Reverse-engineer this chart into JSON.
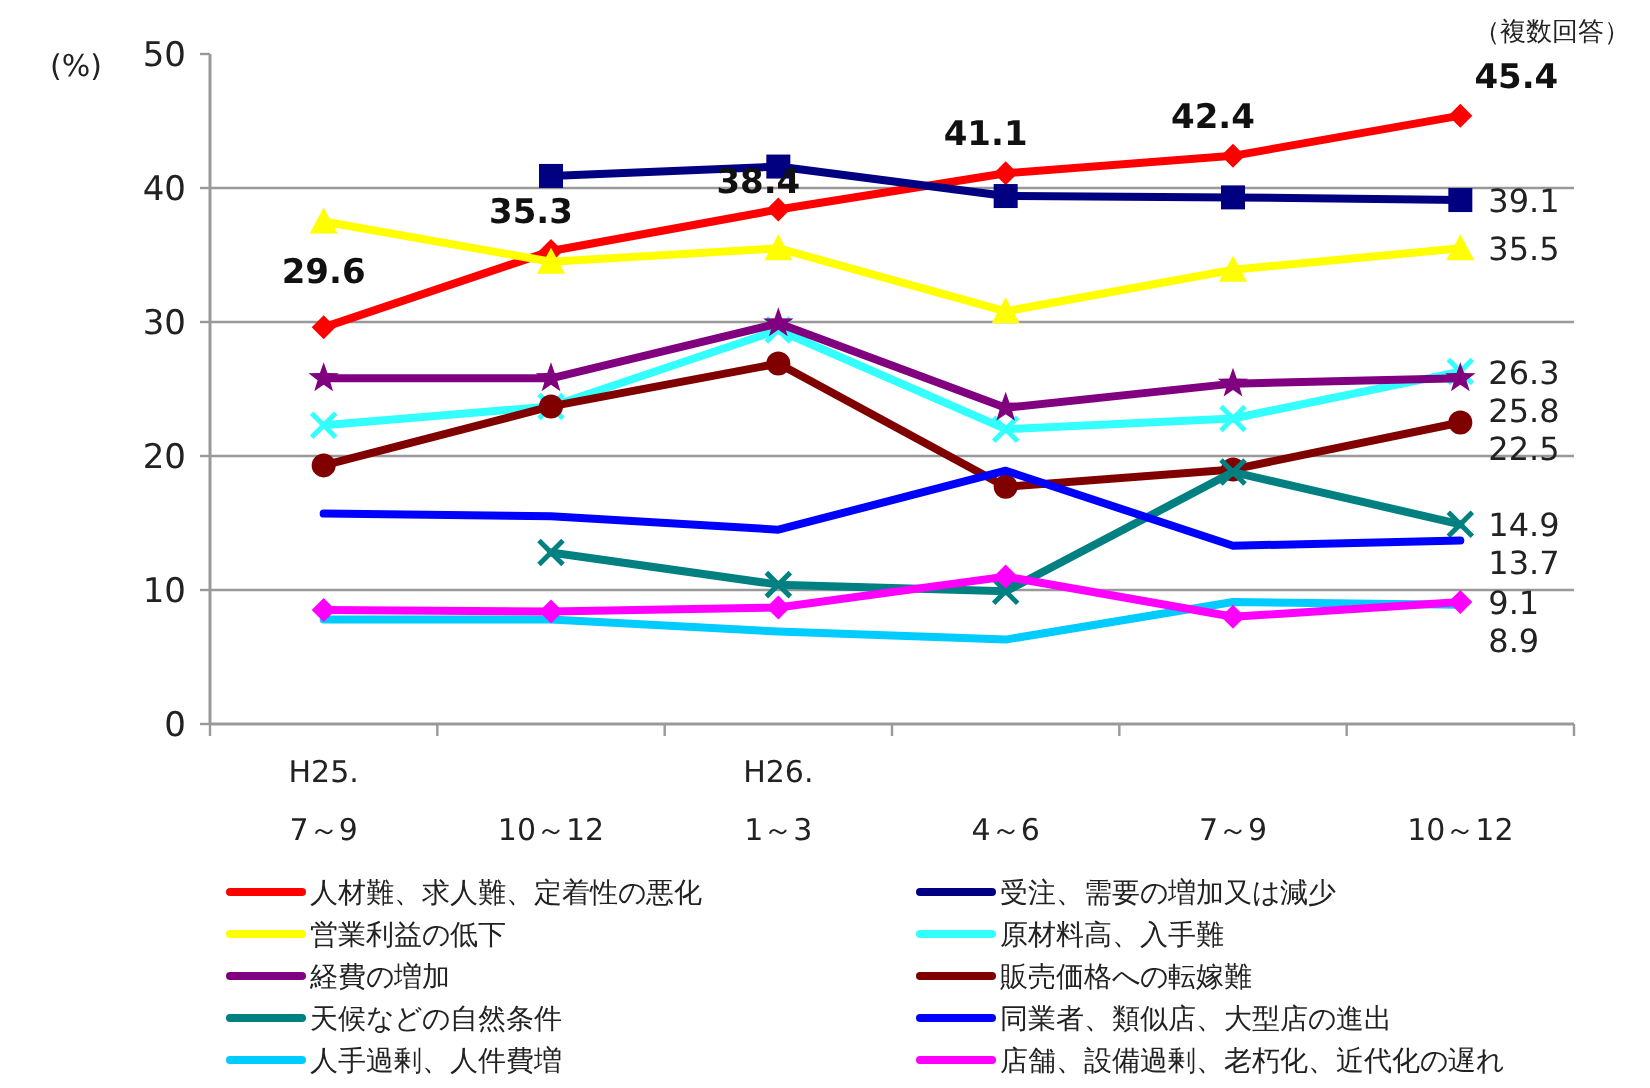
{
  "chart_data": {
    "type": "line",
    "ylabel": "(%)",
    "annotations": [
      "（複数回答）"
    ],
    "categories": [
      "H25. 7～9",
      "10～12",
      "H26. 1～3",
      "4～6",
      "7～9",
      "10～12"
    ],
    "ylim": [
      0,
      50
    ],
    "yticks": [
      0,
      10,
      20,
      30,
      40,
      50
    ],
    "grid": "y",
    "legend": "bottom",
    "line_style": "solid",
    "series": [
      {
        "name": "人材難、求人難、定着性の悪化",
        "color": "#ff0000",
        "marker": "diamond",
        "values": [
          29.6,
          35.3,
          38.4,
          41.1,
          42.4,
          45.4
        ],
        "value_labels": [
          "29.6",
          "35.3",
          "38.4",
          "41.1",
          "42.4",
          "45.4"
        ]
      },
      {
        "name": "受注、需要の増加又は減少",
        "color": "#000080",
        "marker": "square",
        "values": [
          null,
          40.9,
          41.6,
          39.4,
          39.3,
          39.1
        ],
        "value_labels": [
          null,
          null,
          null,
          null,
          null,
          "39.1"
        ]
      },
      {
        "name": "営業利益の低下",
        "color": "#ffff00",
        "marker": "triangle",
        "values": [
          37.5,
          34.5,
          35.5,
          30.8,
          33.9,
          35.5
        ],
        "value_labels": [
          null,
          null,
          null,
          null,
          null,
          "35.5"
        ]
      },
      {
        "name": "原材料高、入手難",
        "color": "#33ffff",
        "marker": "cross",
        "values": [
          22.3,
          23.7,
          29.4,
          22.0,
          22.8,
          26.3
        ],
        "value_labels": [
          null,
          null,
          null,
          null,
          null,
          "26.3"
        ]
      },
      {
        "name": "経費の増加",
        "color": "#800080",
        "marker": "star",
        "values": [
          25.8,
          25.8,
          29.9,
          23.6,
          25.4,
          25.8
        ],
        "value_labels": [
          null,
          null,
          null,
          null,
          null,
          "25.8"
        ]
      },
      {
        "name": "販売価格への転嫁難",
        "color": "#800000",
        "marker": "circle",
        "values": [
          19.3,
          23.7,
          26.9,
          17.7,
          19.0,
          22.5
        ],
        "value_labels": [
          null,
          null,
          null,
          null,
          null,
          "22.5"
        ]
      },
      {
        "name": "天候などの自然条件",
        "color": "#008080",
        "marker": "cross",
        "values": [
          null,
          12.8,
          10.4,
          9.9,
          18.8,
          14.9
        ],
        "value_labels": [
          null,
          null,
          null,
          null,
          null,
          "14.9"
        ]
      },
      {
        "name": "同業者、類似店、大型店の進出",
        "color": "#0000ff",
        "marker": "none",
        "values": [
          15.7,
          15.5,
          14.5,
          18.9,
          13.3,
          13.7
        ],
        "value_labels": [
          null,
          null,
          null,
          null,
          null,
          "13.7"
        ]
      },
      {
        "name": "人手過剰、人件費増",
        "color": "#00ccff",
        "marker": "none",
        "values": [
          7.8,
          7.8,
          6.9,
          6.3,
          9.1,
          8.9
        ],
        "value_labels": [
          null,
          null,
          null,
          null,
          null,
          "8.9"
        ]
      },
      {
        "name": "店舗、設備過剰、老朽化、近代化の遅れ",
        "color": "#ff00ff",
        "marker": "diamond",
        "values": [
          8.5,
          8.4,
          8.7,
          11.0,
          8.0,
          9.1
        ],
        "value_labels": [
          null,
          null,
          null,
          null,
          null,
          "9.1"
        ]
      }
    ]
  }
}
